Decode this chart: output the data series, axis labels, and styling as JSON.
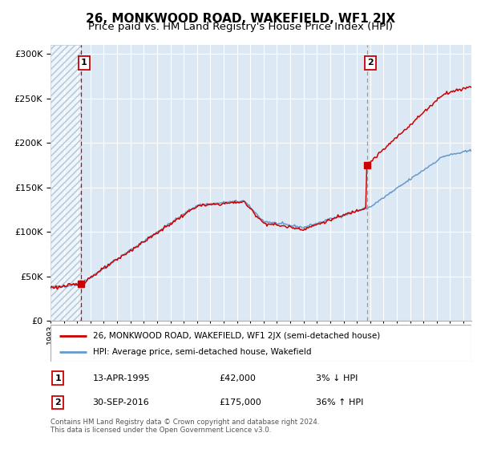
{
  "title": "26, MONKWOOD ROAD, WAKEFIELD, WF1 2JX",
  "subtitle": "Price paid vs. HM Land Registry's House Price Index (HPI)",
  "legend_line1": "26, MONKWOOD ROAD, WAKEFIELD, WF1 2JX (semi-detached house)",
  "legend_line2": "HPI: Average price, semi-detached house, Wakefield",
  "annotation1_label": "1",
  "annotation1_date": "13-APR-1995",
  "annotation1_price": "£42,000",
  "annotation1_hpi": "3% ↓ HPI",
  "annotation2_label": "2",
  "annotation2_date": "30-SEP-2016",
  "annotation2_price": "£175,000",
  "annotation2_hpi": "36% ↑ HPI",
  "footnote": "Contains HM Land Registry data © Crown copyright and database right 2024.\nThis data is licensed under the Open Government Licence v3.0.",
  "purchase1_year": 1995.28,
  "purchase1_value": 42000,
  "purchase2_year": 2016.75,
  "purchase2_value": 175000,
  "ylim": [
    0,
    310000
  ],
  "hpi_color": "#6699cc",
  "price_color": "#cc0000",
  "bg_color": "#dce9f5",
  "hatch_color": "#b0c4d8",
  "grid_color": "#ffffff",
  "title_fontsize": 11,
  "subtitle_fontsize": 9.5
}
